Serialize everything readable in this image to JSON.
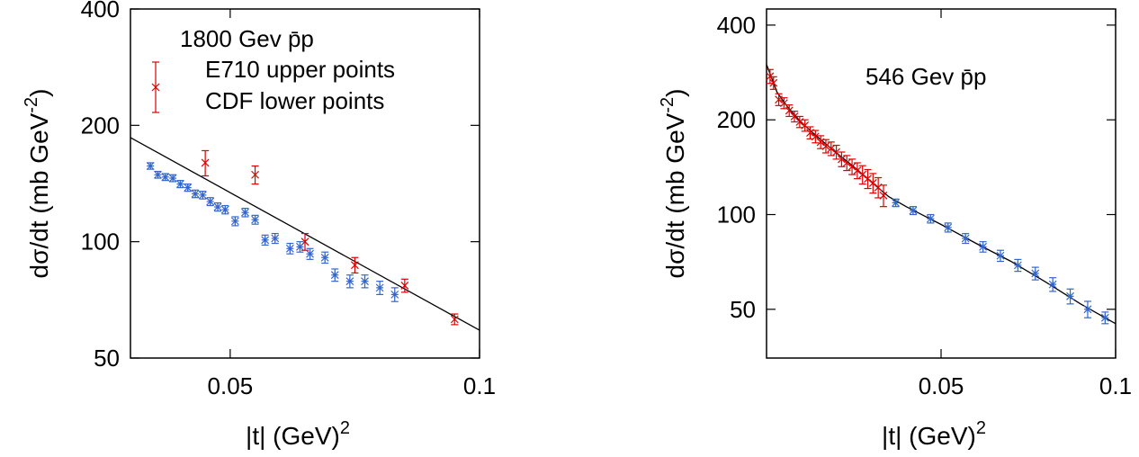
{
  "chart_data": [
    {
      "type": "scatter",
      "title": "1800 Gev p̄p",
      "xlabel": "|t| (GeV)",
      "xlabel_sup": "2",
      "ylabel": "dσ/dt (mb GeV",
      "ylabel_sup": "-2",
      "ylabel_tail": ")",
      "xlim": [
        0.03,
        0.1
      ],
      "ylim": [
        50,
        400
      ],
      "yscale": "log",
      "xticks": [
        0.05,
        0.1
      ],
      "xtick_labels": [
        "0.05",
        "0.1"
      ],
      "yticks": [
        50,
        100,
        200,
        400
      ],
      "ytick_labels": [
        "50",
        "100",
        "200",
        "400"
      ],
      "legend_position": "top-left",
      "series": [
        {
          "name": "E710 upper points",
          "color": "#dd0000",
          "marker": "x",
          "points": [
            {
              "x": 0.045,
              "y": 160,
              "err": 12
            },
            {
              "x": 0.055,
              "y": 149,
              "err": 8
            },
            {
              "x": 0.065,
              "y": 100,
              "err": 5
            },
            {
              "x": 0.075,
              "y": 87,
              "err": 4
            },
            {
              "x": 0.085,
              "y": 77,
              "err": 3
            },
            {
              "x": 0.095,
              "y": 63,
              "err": 2
            }
          ]
        },
        {
          "name": "CDF lower points",
          "color": "#3366cc",
          "marker": "asterisk",
          "points": [
            {
              "x": 0.034,
              "y": 157,
              "err": 3
            },
            {
              "x": 0.0355,
              "y": 149,
              "err": 3
            },
            {
              "x": 0.037,
              "y": 147,
              "err": 3
            },
            {
              "x": 0.0385,
              "y": 146,
              "err": 3
            },
            {
              "x": 0.04,
              "y": 141,
              "err": 3
            },
            {
              "x": 0.0415,
              "y": 138,
              "err": 3
            },
            {
              "x": 0.043,
              "y": 133,
              "err": 3
            },
            {
              "x": 0.0445,
              "y": 132,
              "err": 3
            },
            {
              "x": 0.046,
              "y": 127,
              "err": 3
            },
            {
              "x": 0.0475,
              "y": 123,
              "err": 3
            },
            {
              "x": 0.049,
              "y": 121,
              "err": 3
            },
            {
              "x": 0.051,
              "y": 113,
              "err": 3
            },
            {
              "x": 0.053,
              "y": 119,
              "err": 3
            },
            {
              "x": 0.055,
              "y": 114,
              "err": 3
            },
            {
              "x": 0.057,
              "y": 101,
              "err": 3
            },
            {
              "x": 0.059,
              "y": 102,
              "err": 3
            },
            {
              "x": 0.062,
              "y": 96,
              "err": 3
            },
            {
              "x": 0.064,
              "y": 97,
              "err": 3
            },
            {
              "x": 0.066,
              "y": 93,
              "err": 3
            },
            {
              "x": 0.069,
              "y": 91,
              "err": 3
            },
            {
              "x": 0.071,
              "y": 82,
              "err": 3
            },
            {
              "x": 0.074,
              "y": 79,
              "err": 3
            },
            {
              "x": 0.077,
              "y": 79,
              "err": 3
            },
            {
              "x": 0.08,
              "y": 76,
              "err": 3
            },
            {
              "x": 0.083,
              "y": 73,
              "err": 3
            }
          ]
        }
      ],
      "fit_line": {
        "color": "#000000",
        "points": [
          {
            "x": 0.03,
            "y": 186
          },
          {
            "x": 0.1,
            "y": 59
          }
        ]
      }
    },
    {
      "type": "scatter",
      "title": "546 Gev p̄p",
      "xlabel": "|t| (GeV)",
      "xlabel_sup": "2",
      "ylabel": "dσ/dt (mb GeV",
      "ylabel_sup": "-2",
      "ylabel_tail": ")",
      "xlim": [
        0.0,
        0.1
      ],
      "ylim": [
        35,
        450
      ],
      "yscale": "log",
      "xticks": [
        0.05,
        0.1
      ],
      "xtick_labels": [
        "0.05",
        "0.1"
      ],
      "yticks": [
        50,
        100,
        200,
        400
      ],
      "ytick_labels": [
        "50",
        "100",
        "200",
        "400"
      ],
      "series": [
        {
          "name": "",
          "color": "#dd0000",
          "marker": "x",
          "points": [
            {
              "x": 0.001,
              "y": 275,
              "err": 14
            },
            {
              "x": 0.002,
              "y": 262,
              "err": 12
            },
            {
              "x": 0.0035,
              "y": 232,
              "err": 10
            },
            {
              "x": 0.005,
              "y": 226,
              "err": 9
            },
            {
              "x": 0.0065,
              "y": 214,
              "err": 9
            },
            {
              "x": 0.008,
              "y": 205,
              "err": 8
            },
            {
              "x": 0.0095,
              "y": 197,
              "err": 8
            },
            {
              "x": 0.011,
              "y": 192,
              "err": 8
            },
            {
              "x": 0.0125,
              "y": 182,
              "err": 8
            },
            {
              "x": 0.014,
              "y": 177,
              "err": 8
            },
            {
              "x": 0.0155,
              "y": 170,
              "err": 8
            },
            {
              "x": 0.017,
              "y": 165,
              "err": 8
            },
            {
              "x": 0.0185,
              "y": 162,
              "err": 8
            },
            {
              "x": 0.02,
              "y": 158,
              "err": 8
            },
            {
              "x": 0.0215,
              "y": 150,
              "err": 8
            },
            {
              "x": 0.023,
              "y": 146,
              "err": 8
            },
            {
              "x": 0.0245,
              "y": 142,
              "err": 8
            },
            {
              "x": 0.026,
              "y": 138,
              "err": 8
            },
            {
              "x": 0.0275,
              "y": 134,
              "err": 9
            },
            {
              "x": 0.029,
              "y": 130,
              "err": 9
            },
            {
              "x": 0.0305,
              "y": 126,
              "err": 9
            },
            {
              "x": 0.032,
              "y": 122,
              "err": 9
            },
            {
              "x": 0.0335,
              "y": 115,
              "err": 9
            }
          ]
        },
        {
          "name": "",
          "color": "#3366cc",
          "marker": "asterisk",
          "points": [
            {
              "x": 0.037,
              "y": 109,
              "err": 3
            },
            {
              "x": 0.042,
              "y": 103,
              "err": 3
            },
            {
              "x": 0.047,
              "y": 97,
              "err": 3
            },
            {
              "x": 0.052,
              "y": 91,
              "err": 3
            },
            {
              "x": 0.057,
              "y": 84,
              "err": 3
            },
            {
              "x": 0.062,
              "y": 79,
              "err": 3
            },
            {
              "x": 0.067,
              "y": 74,
              "err": 3
            },
            {
              "x": 0.072,
              "y": 69,
              "err": 3
            },
            {
              "x": 0.077,
              "y": 65,
              "err": 3
            },
            {
              "x": 0.082,
              "y": 60,
              "err": 3
            },
            {
              "x": 0.087,
              "y": 55,
              "err": 3
            },
            {
              "x": 0.092,
              "y": 50,
              "err": 3
            },
            {
              "x": 0.097,
              "y": 47,
              "err": 2
            }
          ]
        }
      ],
      "fit_curve": {
        "color": "#000000",
        "points": [
          {
            "x": 0.0,
            "y": 300
          },
          {
            "x": 0.003,
            "y": 245
          },
          {
            "x": 0.006,
            "y": 220
          },
          {
            "x": 0.01,
            "y": 196
          },
          {
            "x": 0.015,
            "y": 175
          },
          {
            "x": 0.02,
            "y": 157
          },
          {
            "x": 0.025,
            "y": 142
          },
          {
            "x": 0.03,
            "y": 127
          },
          {
            "x": 0.035,
            "y": 114
          },
          {
            "x": 0.04,
            "y": 106
          },
          {
            "x": 0.05,
            "y": 93
          },
          {
            "x": 0.06,
            "y": 81
          },
          {
            "x": 0.07,
            "y": 71
          },
          {
            "x": 0.08,
            "y": 61
          },
          {
            "x": 0.09,
            "y": 52
          },
          {
            "x": 0.1,
            "y": 45
          }
        ]
      }
    }
  ]
}
